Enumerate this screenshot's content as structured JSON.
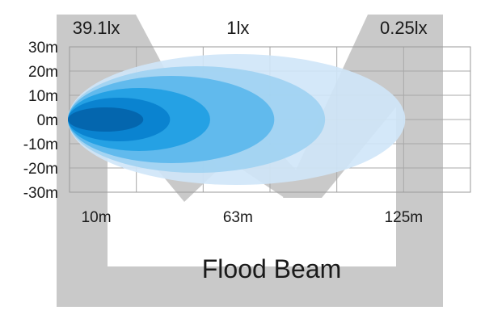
{
  "chart_data": {
    "type": "area",
    "title": "Flood Beam",
    "xlabel": "",
    "ylabel": "",
    "xlim": [
      0,
      150
    ],
    "ylim": [
      -30,
      30
    ],
    "x_ticks": [
      {
        "value": 10,
        "label": "10m"
      },
      {
        "value": 63,
        "label": "63m"
      },
      {
        "value": 125,
        "label": "125m"
      }
    ],
    "y_ticks": [
      {
        "value": 30,
        "label": "30m"
      },
      {
        "value": 20,
        "label": "20m"
      },
      {
        "value": 10,
        "label": "10m"
      },
      {
        "value": 0,
        "label": "0m"
      },
      {
        "value": -10,
        "label": "-10m"
      },
      {
        "value": -20,
        "label": "-20m"
      },
      {
        "value": -30,
        "label": "-30m"
      }
    ],
    "grid": true,
    "beam_contours": [
      {
        "reach": 125,
        "half_width": 27,
        "color": "#cfe6f8"
      },
      {
        "reach": 95,
        "half_width": 22,
        "color": "#9fd1f2"
      },
      {
        "reach": 76,
        "half_width": 18,
        "color": "#5ab7ec"
      },
      {
        "reach": 52,
        "half_width": 13,
        "color": "#1f9ee2"
      },
      {
        "reach": 37,
        "half_width": 9,
        "color": "#0880cd"
      },
      {
        "reach": 27,
        "half_width": 5,
        "color": "#0363aa"
      }
    ],
    "lux_labels": [
      {
        "text": "39.1lx",
        "x": 10
      },
      {
        "text": "1lx",
        "x": 63
      },
      {
        "text": "0.25lx",
        "x": 125
      }
    ]
  },
  "watermark": {
    "glyphs": "MW",
    "color": "#c9c9c9"
  }
}
